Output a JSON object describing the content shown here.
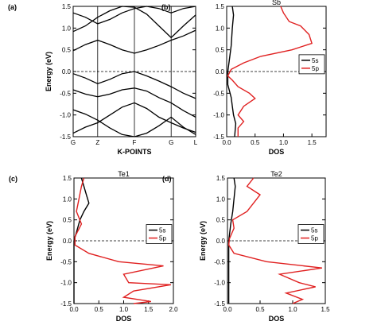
{
  "figure": {
    "ylabel_shared": "Energy (eV)",
    "y_ticks": [
      "1.5",
      "1.0",
      "0.5",
      "0.0",
      "-0.5",
      "-1.0",
      "-1.5"
    ]
  },
  "chart_data": [
    {
      "panel": "(a)",
      "type": "line",
      "title": "",
      "xlabel": "K-POINTS",
      "ylabel": "Energy (eV)",
      "ylim": [
        -1.5,
        1.5
      ],
      "kpoints": [
        {
          "label": "G",
          "x": 0
        },
        {
          "label": "Z",
          "x": 1
        },
        {
          "label": "F",
          "x": 2.5
        },
        {
          "label": "G",
          "x": 4
        },
        {
          "label": "L",
          "x": 5
        }
      ],
      "fermi_level": 0,
      "series": [
        {
          "x": [
            0,
            0.5,
            1,
            1.5,
            2,
            2.5,
            3,
            3.5,
            4,
            4.5,
            5
          ],
          "values": [
            -1.42,
            -1.28,
            -1.18,
            -1.0,
            -0.82,
            -0.72,
            -0.85,
            -1.05,
            -1.18,
            -1.3,
            -1.4
          ]
        },
        {
          "x": [
            0,
            0.5,
            1,
            1.5,
            2,
            2.5,
            3,
            3.5,
            4,
            4.5,
            5
          ],
          "values": [
            -0.88,
            -0.98,
            -1.12,
            -1.3,
            -1.45,
            -1.5,
            -1.42,
            -1.25,
            -1.05,
            -1.28,
            -1.45
          ]
        },
        {
          "x": [
            0,
            0.5,
            1,
            1.5,
            2,
            2.5,
            3,
            3.5,
            4,
            4.5,
            5
          ],
          "values": [
            -0.42,
            -0.52,
            -0.58,
            -0.52,
            -0.42,
            -0.38,
            -0.45,
            -0.6,
            -0.72,
            -0.9,
            -1.05
          ]
        },
        {
          "x": [
            0,
            0.5,
            1,
            1.5,
            2,
            2.5,
            3,
            3.5,
            4,
            4.5,
            5
          ],
          "values": [
            -0.05,
            -0.15,
            -0.28,
            -0.18,
            -0.05,
            0.0,
            -0.1,
            -0.22,
            -0.35,
            -0.5,
            -0.62
          ]
        },
        {
          "x": [
            0,
            0.5,
            1,
            1.5,
            2,
            2.5,
            3,
            3.5,
            4,
            4.5,
            5
          ],
          "values": [
            0.48,
            0.62,
            0.72,
            0.62,
            0.5,
            0.42,
            0.5,
            0.6,
            0.72,
            0.82,
            0.95
          ]
        },
        {
          "x": [
            0,
            0.5,
            1,
            1.5,
            2,
            2.5,
            3,
            3.5,
            4,
            4.5,
            5
          ],
          "values": [
            0.92,
            1.05,
            1.25,
            1.4,
            1.5,
            1.48,
            1.32,
            1.05,
            0.78,
            1.05,
            1.3
          ]
        },
        {
          "x": [
            0,
            0.5,
            1,
            1.5,
            2,
            2.5,
            3,
            3.5,
            4,
            4.5,
            5
          ],
          "values": [
            1.35,
            1.25,
            1.1,
            1.2,
            1.35,
            1.45,
            1.5,
            1.45,
            1.35,
            1.45,
            1.5
          ]
        }
      ]
    },
    {
      "panel": "(b)",
      "type": "line",
      "title": "Sb",
      "xlabel": "DOS",
      "ylabel": "",
      "xlim": [
        0,
        1.75
      ],
      "ylim": [
        -1.5,
        1.5
      ],
      "x_ticks": [
        0.0,
        0.5,
        1.0,
        1.5
      ],
      "fermi_level": 0,
      "legend": "right",
      "series": [
        {
          "name": "5s",
          "color": "#000000",
          "points": [
            [
              0.1,
              1.5
            ],
            [
              0.12,
              1.3
            ],
            [
              0.1,
              1.0
            ],
            [
              0.08,
              0.6
            ],
            [
              0.05,
              0.3
            ],
            [
              0.02,
              0.0
            ],
            [
              0.02,
              -0.3
            ],
            [
              0.08,
              -0.6
            ],
            [
              0.1,
              -0.8
            ],
            [
              0.12,
              -1.0
            ],
            [
              0.16,
              -1.2
            ],
            [
              0.14,
              -1.5
            ]
          ]
        },
        {
          "name": "5p",
          "color": "#e02020",
          "points": [
            [
              0.95,
              1.5
            ],
            [
              1.0,
              1.35
            ],
            [
              1.1,
              1.15
            ],
            [
              1.3,
              1.05
            ],
            [
              1.45,
              0.85
            ],
            [
              1.5,
              0.65
            ],
            [
              1.15,
              0.5
            ],
            [
              0.6,
              0.35
            ],
            [
              0.3,
              0.2
            ],
            [
              0.08,
              0.05
            ],
            [
              0.02,
              -0.1
            ],
            [
              0.1,
              -0.2
            ],
            [
              0.2,
              -0.35
            ],
            [
              0.4,
              -0.5
            ],
            [
              0.5,
              -0.62
            ],
            [
              0.3,
              -0.8
            ],
            [
              0.2,
              -1.0
            ],
            [
              0.3,
              -1.15
            ],
            [
              0.2,
              -1.3
            ],
            [
              0.2,
              -1.5
            ]
          ]
        }
      ]
    },
    {
      "panel": "(c)",
      "type": "line",
      "title": "Te1",
      "xlabel": "DOS",
      "ylabel": "Energy (eV)",
      "xlim": [
        0,
        2.0
      ],
      "ylim": [
        -1.5,
        1.5
      ],
      "x_ticks": [
        0.0,
        0.5,
        1.0,
        1.5,
        2.0
      ],
      "fermi_level": 0,
      "legend": "right",
      "series": [
        {
          "name": "5s",
          "color": "#000000",
          "points": [
            [
              0.15,
              1.5
            ],
            [
              0.2,
              1.3
            ],
            [
              0.25,
              1.1
            ],
            [
              0.3,
              0.9
            ],
            [
              0.2,
              0.7
            ],
            [
              0.12,
              0.5
            ],
            [
              0.05,
              0.2
            ],
            [
              0.0,
              0.0
            ],
            [
              0.0,
              -0.5
            ],
            [
              0.0,
              -1.0
            ],
            [
              0.0,
              -1.5
            ]
          ]
        },
        {
          "name": "5p",
          "color": "#e02020",
          "points": [
            [
              0.2,
              1.5
            ],
            [
              0.15,
              1.3
            ],
            [
              0.1,
              1.0
            ],
            [
              0.05,
              0.7
            ],
            [
              0.15,
              0.4
            ],
            [
              0.02,
              0.1
            ],
            [
              0.02,
              -0.1
            ],
            [
              0.3,
              -0.3
            ],
            [
              0.9,
              -0.5
            ],
            [
              1.8,
              -0.6
            ],
            [
              1.0,
              -0.8
            ],
            [
              1.1,
              -1.0
            ],
            [
              1.95,
              -1.05
            ],
            [
              1.2,
              -1.2
            ],
            [
              1.0,
              -1.35
            ],
            [
              1.55,
              -1.45
            ],
            [
              1.2,
              -1.5
            ]
          ]
        }
      ]
    },
    {
      "panel": "(d)",
      "type": "line",
      "title": "Te2",
      "xlabel": "DOS",
      "ylabel": "Energy (eV)",
      "xlim": [
        0,
        1.5
      ],
      "ylim": [
        -1.5,
        1.5
      ],
      "x_ticks": [
        0.0,
        0.5,
        1.0,
        1.5
      ],
      "fermi_level": 0,
      "legend": "right",
      "series": [
        {
          "name": "5s",
          "color": "#000000",
          "points": [
            [
              0.1,
              1.5
            ],
            [
              0.12,
              1.3
            ],
            [
              0.1,
              1.0
            ],
            [
              0.08,
              0.7
            ],
            [
              0.05,
              0.4
            ],
            [
              0.02,
              0.0
            ],
            [
              0.02,
              -0.5
            ],
            [
              0.02,
              -1.0
            ],
            [
              0.02,
              -1.5
            ]
          ]
        },
        {
          "name": "5p",
          "color": "#e02020",
          "points": [
            [
              0.4,
              1.5
            ],
            [
              0.3,
              1.3
            ],
            [
              0.5,
              1.1
            ],
            [
              0.4,
              0.9
            ],
            [
              0.3,
              0.7
            ],
            [
              0.08,
              0.5
            ],
            [
              0.1,
              0.3
            ],
            [
              0.03,
              0.05
            ],
            [
              0.02,
              -0.1
            ],
            [
              0.1,
              -0.3
            ],
            [
              0.6,
              -0.5
            ],
            [
              1.45,
              -0.65
            ],
            [
              0.8,
              -0.8
            ],
            [
              1.1,
              -1.0
            ],
            [
              1.35,
              -1.1
            ],
            [
              0.9,
              -1.25
            ],
            [
              1.15,
              -1.4
            ],
            [
              1.0,
              -1.5
            ]
          ]
        }
      ]
    }
  ]
}
